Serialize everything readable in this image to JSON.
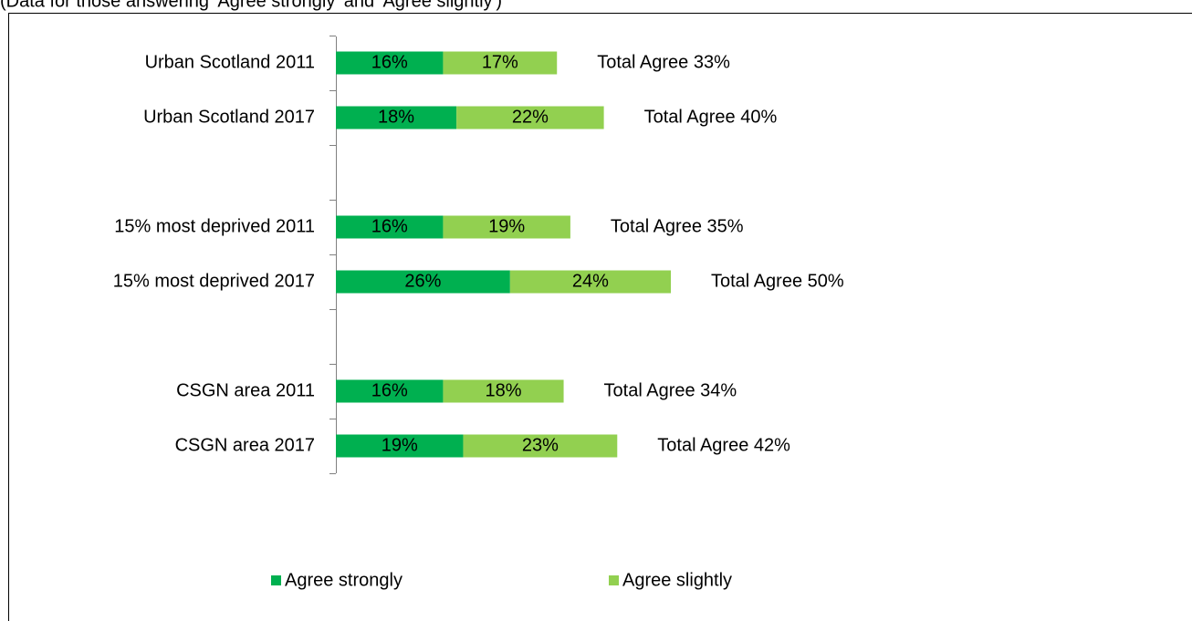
{
  "chart_data": {
    "type": "stacked_barh",
    "subtitle": "(Data for those answering 'Agree strongly' and 'Agree slightly')",
    "categories": [
      "Urban Scotland 2011",
      "Urban Scotland 2017",
      null,
      "15% most deprived 2011",
      "15% most deprived 2017",
      null,
      "CSGN area 2011",
      "CSGN area 2017"
    ],
    "series": [
      {
        "name": "Agree strongly",
        "color": "#00b050",
        "values": [
          16,
          18,
          null,
          16,
          26,
          null,
          16,
          19
        ],
        "value_labels": [
          "16%",
          "18%",
          null,
          "16%",
          "26%",
          null,
          "16%",
          "19%"
        ]
      },
      {
        "name": "Agree slightly",
        "color": "#92d050",
        "values": [
          17,
          22,
          null,
          19,
          24,
          null,
          18,
          23
        ],
        "value_labels": [
          "17%",
          "22%",
          null,
          "19%",
          "24%",
          null,
          "18%",
          "23%"
        ]
      }
    ],
    "total_labels": [
      "Total Agree 33%",
      "Total Agree 40%",
      null,
      "Total Agree 35%",
      "Total Agree 50%",
      null,
      "Total Agree 34%",
      "Total Agree 42%"
    ],
    "xlim": [
      0,
      100
    ],
    "legend": "bottom"
  }
}
